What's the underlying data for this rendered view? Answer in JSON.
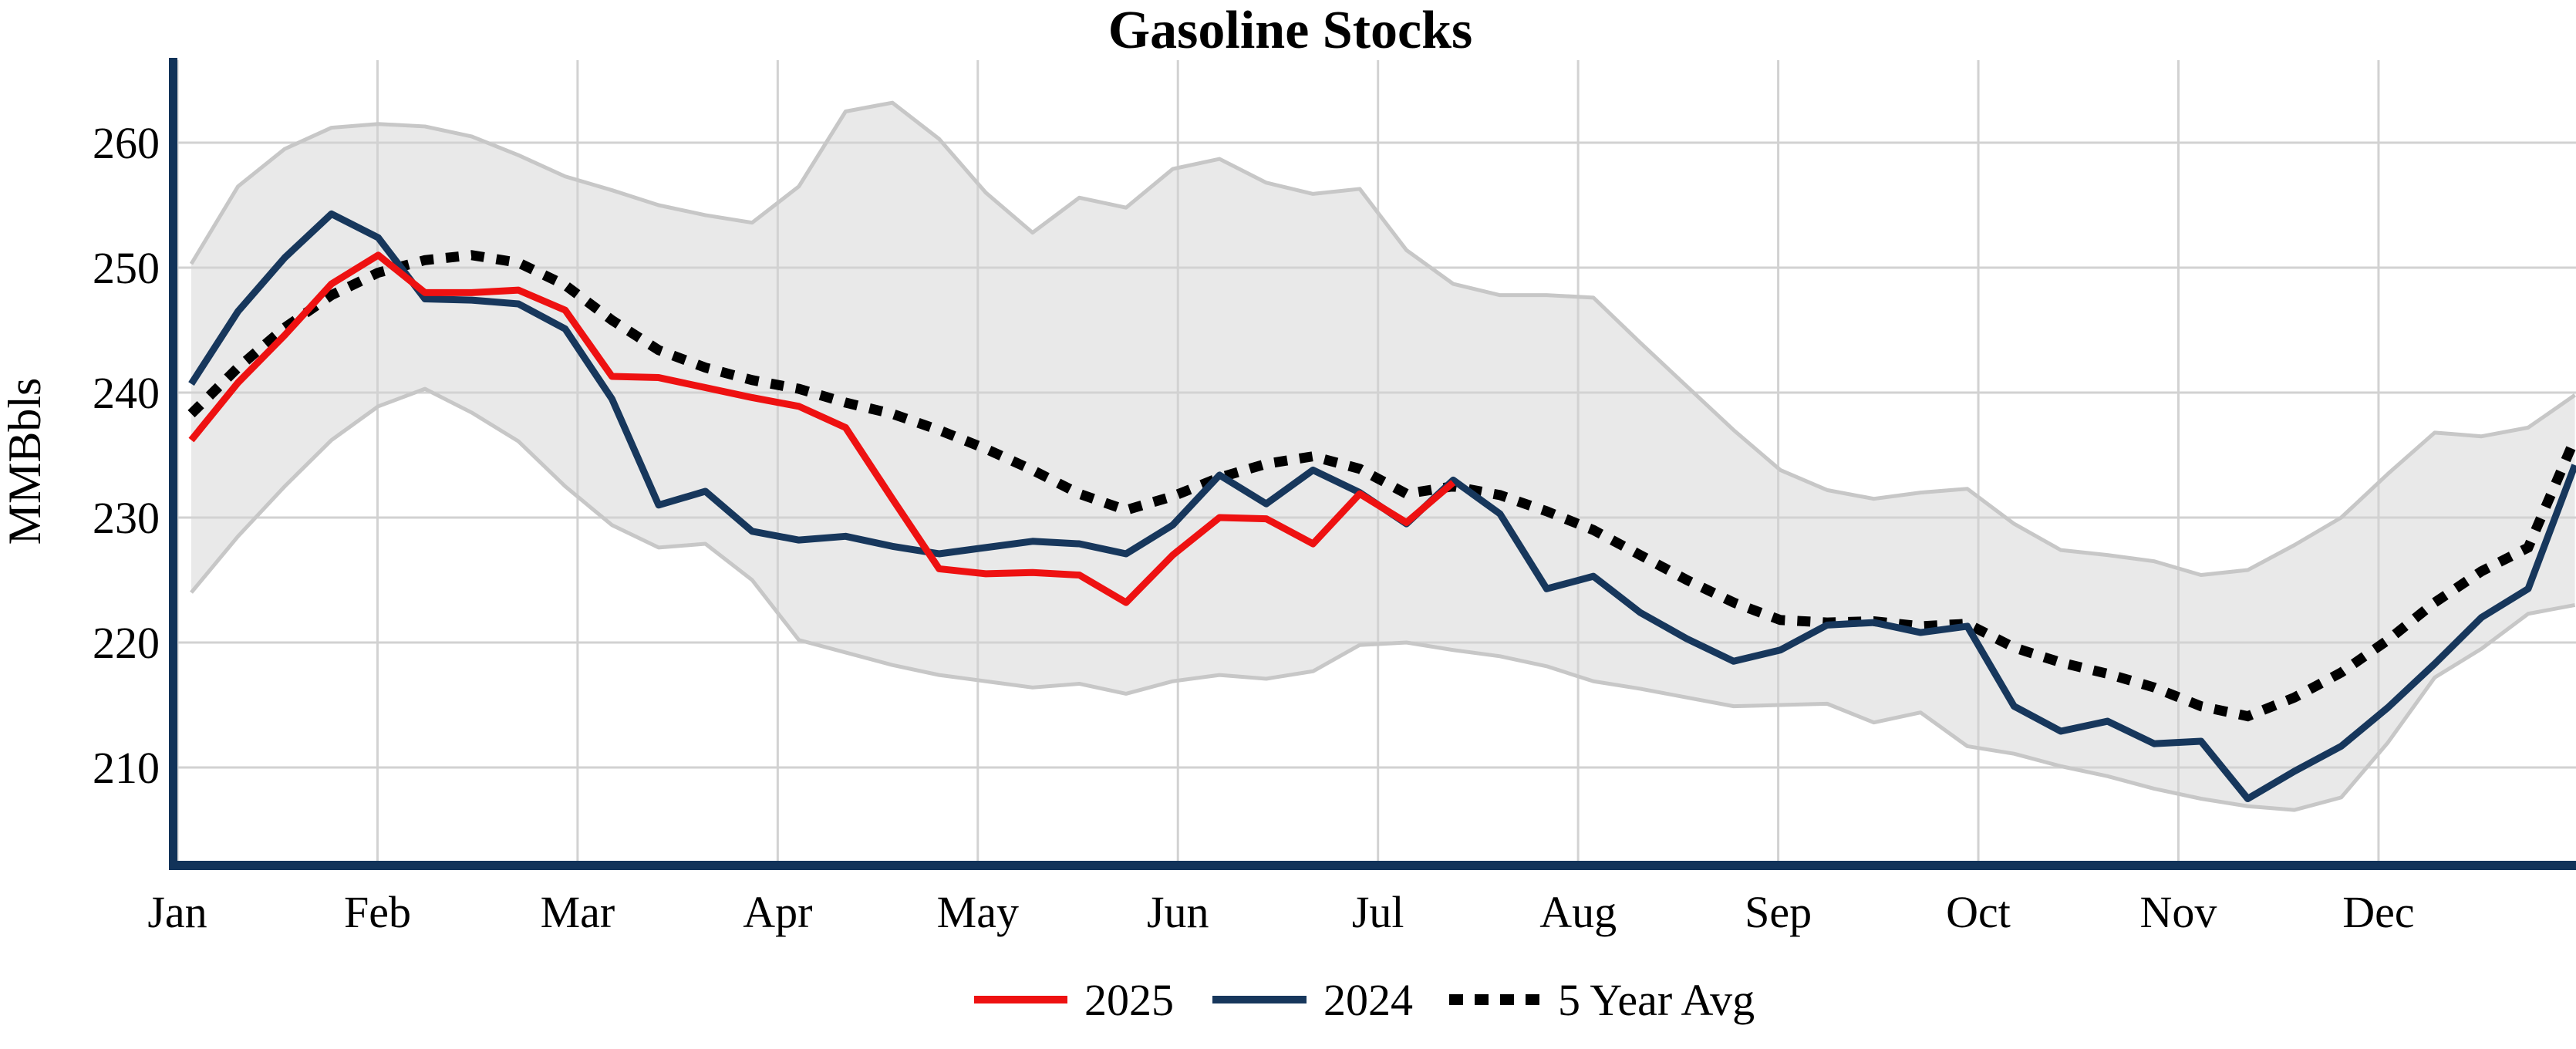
{
  "chart_data": {
    "type": "line",
    "title": "Gasoline Stocks",
    "ylabel": "MMBbls",
    "x_months": [
      "Jan",
      "Feb",
      "Mar",
      "Apr",
      "May",
      "Jun",
      "Jul",
      "Aug",
      "Sep",
      "Oct",
      "Nov",
      "Dec"
    ],
    "y_ticks": [
      210,
      220,
      230,
      240,
      250,
      260
    ],
    "ylim": [
      202,
      267
    ],
    "grid": "on",
    "legend_position": "bottom-center",
    "weeks_per_year": 52,
    "colors": {
      "line_2025": "#ee1111",
      "line_2024": "#17375c",
      "line_5yr_avg": "#000000",
      "band_fill": "#e9e9e9",
      "band_edge": "#c7c7c7",
      "gridline": "#d2d2d2",
      "axis_spine": "#123359",
      "text": "#000000"
    },
    "series": [
      {
        "name": "2025",
        "style": "solid",
        "color": "#ee1111",
        "values": [
          236.2,
          240.8,
          244.6,
          248.7,
          251.0,
          248.0,
          248.0,
          248.2,
          246.6,
          241.3,
          241.2,
          240.4,
          239.6,
          238.9,
          237.2,
          231.5,
          225.9,
          225.5,
          225.6,
          225.4,
          223.2,
          227.0,
          230.0,
          229.9,
          227.9,
          231.9,
          229.6,
          232.8
        ]
      },
      {
        "name": "2024",
        "style": "solid",
        "color": "#17375c",
        "values": [
          240.7,
          246.5,
          250.8,
          254.3,
          252.4,
          247.5,
          247.4,
          247.1,
          245.1,
          239.5,
          231.0,
          232.1,
          228.9,
          228.2,
          228.5,
          227.7,
          227.1,
          227.6,
          228.1,
          227.9,
          227.1,
          229.4,
          233.4,
          231.1,
          233.8,
          232.0,
          229.5,
          233.0,
          230.3,
          224.3,
          225.3,
          222.4,
          220.3,
          218.5,
          219.4,
          221.4,
          221.6,
          220.8,
          221.3,
          214.9,
          212.9,
          213.7,
          211.9,
          212.1,
          207.5,
          209.7,
          211.7,
          214.8,
          218.3,
          222.0,
          224.3,
          234.2
        ]
      },
      {
        "name": "5 Year Avg",
        "style": "dotted",
        "color": "#000000",
        "values": [
          238.3,
          242.0,
          245.2,
          247.8,
          249.6,
          250.6,
          251.0,
          250.4,
          248.6,
          245.8,
          243.4,
          242.0,
          241.0,
          240.3,
          239.2,
          238.3,
          237.0,
          235.5,
          233.8,
          231.9,
          230.6,
          231.7,
          233.2,
          234.3,
          234.9,
          233.9,
          231.9,
          232.5,
          231.8,
          230.5,
          229.0,
          227.0,
          225.0,
          223.2,
          221.8,
          221.6,
          221.7,
          221.3,
          221.5,
          219.6,
          218.4,
          217.5,
          216.4,
          214.9,
          214.1,
          215.6,
          217.6,
          220.2,
          223.2,
          225.7,
          227.6,
          236.3
        ]
      }
    ],
    "band": {
      "max": [
        250.3,
        256.5,
        259.5,
        261.2,
        261.5,
        261.3,
        260.5,
        259.0,
        257.3,
        256.2,
        255.0,
        254.2,
        253.6,
        256.5,
        262.5,
        263.2,
        260.3,
        256.0,
        252.8,
        255.6,
        254.8,
        257.9,
        258.7,
        256.8,
        255.9,
        256.3,
        251.4,
        248.7,
        247.8,
        247.8,
        247.6,
        244.0,
        240.5,
        237.0,
        233.8,
        232.2,
        231.5,
        232.0,
        232.3,
        229.5,
        227.4,
        227.0,
        226.5,
        225.4,
        225.8,
        227.8,
        230.0,
        233.5,
        236.8,
        236.5,
        237.2,
        239.8
      ],
      "min": [
        224.0,
        228.5,
        232.5,
        236.2,
        238.9,
        240.3,
        238.4,
        236.1,
        232.5,
        229.4,
        227.6,
        227.9,
        225.0,
        220.2,
        219.2,
        218.2,
        217.4,
        216.9,
        216.4,
        216.7,
        215.9,
        216.9,
        217.4,
        217.1,
        217.7,
        219.8,
        220.0,
        219.4,
        218.9,
        218.1,
        216.9,
        216.3,
        215.6,
        214.9,
        215.0,
        215.1,
        213.6,
        214.4,
        211.7,
        211.1,
        210.1,
        209.3,
        208.3,
        207.5,
        206.9,
        206.6,
        207.6,
        212.0,
        217.2,
        219.5,
        222.3,
        223.0
      ]
    },
    "legend": [
      {
        "label": "2025",
        "color": "#ee1111",
        "style": "solid"
      },
      {
        "label": "2024",
        "color": "#17375c",
        "style": "solid"
      },
      {
        "label": "5 Year Avg",
        "color": "#000000",
        "style": "dotted"
      }
    ]
  }
}
